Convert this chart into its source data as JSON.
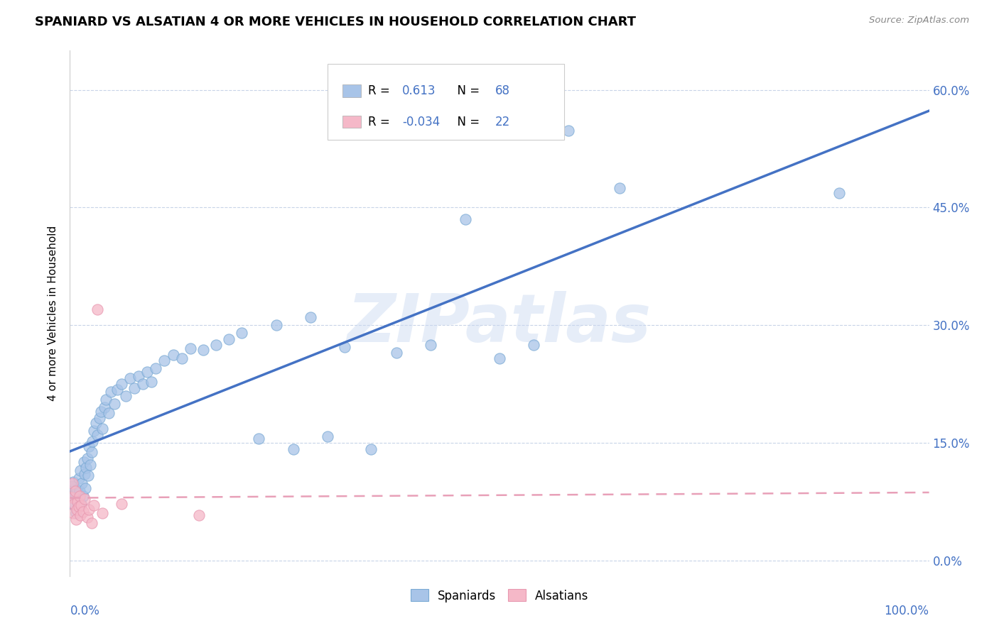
{
  "title": "SPANIARD VS ALSATIAN 4 OR MORE VEHICLES IN HOUSEHOLD CORRELATION CHART",
  "source": "Source: ZipAtlas.com",
  "ylabel": "4 or more Vehicles in Household",
  "r_spaniard": 0.613,
  "n_spaniard": 68,
  "r_alsatian": -0.034,
  "n_alsatian": 22,
  "xmin": 0.0,
  "xmax": 1.0,
  "ymin": -0.02,
  "ymax": 0.65,
  "ytick_vals": [
    0.0,
    0.15,
    0.3,
    0.45,
    0.6
  ],
  "ytick_labels_right": [
    "0.0%",
    "15.0%",
    "30.0%",
    "45.0%",
    "60.0%"
  ],
  "watermark": "ZIPatlas",
  "spaniard_dot_color": "#a8c4e8",
  "spaniard_edge_color": "#7aaad4",
  "alsatian_dot_color": "#f5b8c8",
  "alsatian_edge_color": "#e898b0",
  "trend_spaniard_color": "#4472c4",
  "trend_alsatian_color": "#e8a0b8",
  "background_color": "#ffffff",
  "grid_color": "#c8d4e8",
  "legend_labels": [
    "Spaniards",
    "Alsatians"
  ],
  "spaniard_seed": 42,
  "alsatian_seed": 99
}
